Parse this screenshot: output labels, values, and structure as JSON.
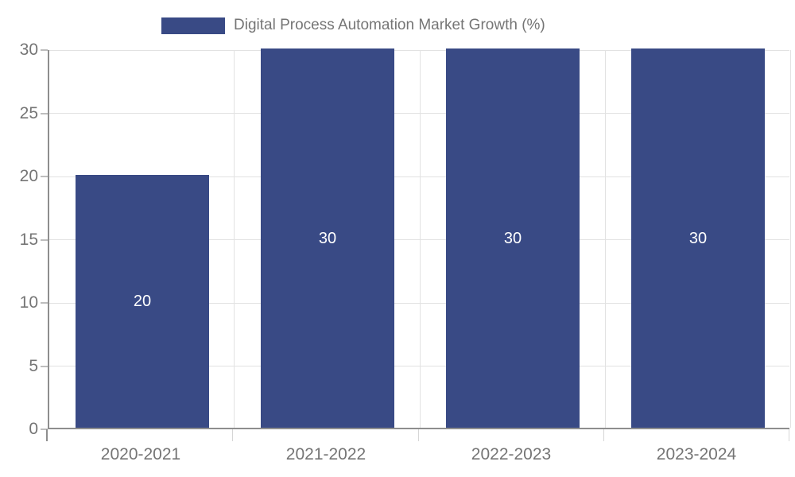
{
  "legend": {
    "label": "Digital Process Automation Market Growth (%)",
    "swatch_color": "#394A85"
  },
  "colors": {
    "bar": "#394A85",
    "bar_label": "#FFFFFF",
    "axis_text": "#757575",
    "axis_line": "#8E8E8E",
    "gridline": "#E2E2E2",
    "background": "#FFFFFF"
  },
  "chart_data": {
    "type": "bar",
    "title": "Digital Process Automation Market Growth (%)",
    "categories": [
      "2020-2021",
      "2021-2022",
      "2022-2023",
      "2023-2024"
    ],
    "values": [
      20,
      30,
      30,
      30
    ],
    "data_labels": [
      "20",
      "30",
      "30",
      "30"
    ],
    "xlabel": "",
    "ylabel": "",
    "ylim": [
      0,
      30
    ],
    "yticks": [
      0,
      5,
      10,
      15,
      20,
      25,
      30
    ],
    "grid": true,
    "legend_position": "top"
  }
}
